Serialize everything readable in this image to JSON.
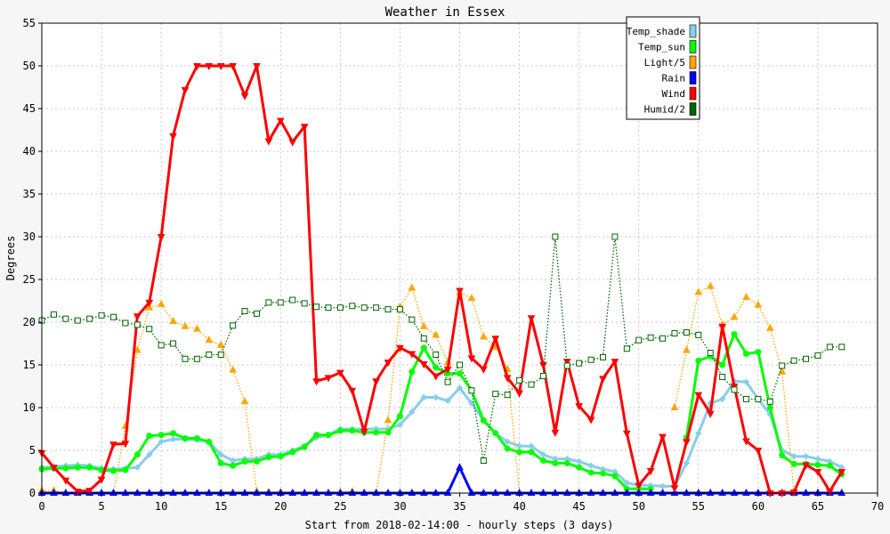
{
  "chart_data": {
    "type": "line",
    "title": "Weather in Essex",
    "xlabel": "Start from 2018-02-14:00 - hourly steps (3 days)",
    "ylabel": "Degrees",
    "xlim": [
      0,
      70
    ],
    "ylim": [
      0,
      55
    ],
    "x_ticks": [
      0,
      5,
      10,
      15,
      20,
      25,
      30,
      35,
      40,
      45,
      50,
      55,
      60,
      65,
      70
    ],
    "y_ticks": [
      0,
      5,
      10,
      15,
      20,
      25,
      30,
      35,
      40,
      45,
      50,
      55
    ],
    "grid": true,
    "legend_position": "top-right",
    "x": [
      0,
      1,
      2,
      3,
      4,
      5,
      6,
      7,
      8,
      9,
      10,
      11,
      12,
      13,
      14,
      15,
      16,
      17,
      18,
      19,
      20,
      21,
      22,
      23,
      24,
      25,
      26,
      27,
      28,
      29,
      30,
      31,
      32,
      33,
      34,
      35,
      36,
      37,
      38,
      39,
      40,
      41,
      42,
      43,
      44,
      45,
      46,
      47,
      48,
      49,
      50,
      51,
      52,
      53,
      54,
      55,
      56,
      57,
      58,
      59,
      60,
      61,
      62,
      63,
      64,
      65,
      66,
      67
    ],
    "series": [
      {
        "name": "Temp_shade",
        "color": "#87ceeb",
        "style": "solid",
        "marker": "diamond",
        "values": [
          3.0,
          3.1,
          3.2,
          3.3,
          3.2,
          2.9,
          2.8,
          2.9,
          3.0,
          4.5,
          6.0,
          6.3,
          6.3,
          6.2,
          6.0,
          4.5,
          3.8,
          4.0,
          4.0,
          4.5,
          4.5,
          5.0,
          5.5,
          6.5,
          6.8,
          7.5,
          7.5,
          7.5,
          7.5,
          7.5,
          8.0,
          9.5,
          11.2,
          11.2,
          10.8,
          12.3,
          10.5,
          8.5,
          7.0,
          6.0,
          5.5,
          5.5,
          4.5,
          4.0,
          4.0,
          3.7,
          3.2,
          2.8,
          2.5,
          1.2,
          0.9,
          0.9,
          0.8,
          0.8,
          3.5,
          7.0,
          10.5,
          11.0,
          13.1,
          13.0,
          11.0,
          9.2,
          5.0,
          4.3,
          4.3,
          4.0,
          3.7,
          3.0
        ]
      },
      {
        "name": "Temp_sun",
        "color": "#00ff00",
        "style": "solid",
        "marker": "circle",
        "values": [
          2.8,
          2.9,
          2.9,
          3.0,
          3.0,
          2.7,
          2.6,
          2.7,
          4.5,
          6.7,
          6.8,
          7.0,
          6.4,
          6.4,
          6.0,
          3.5,
          3.2,
          3.7,
          3.7,
          4.2,
          4.3,
          4.8,
          5.4,
          6.8,
          6.8,
          7.3,
          7.3,
          7.1,
          7.1,
          7.1,
          9.0,
          14.2,
          17.0,
          14.7,
          14.0,
          14.0,
          12.0,
          8.5,
          7.0,
          5.2,
          4.8,
          4.8,
          3.8,
          3.5,
          3.5,
          3.0,
          2.4,
          2.3,
          2.0,
          0.5,
          0.5,
          0.5,
          null,
          null,
          6.5,
          15.5,
          16.0,
          15.0,
          18.6,
          16.3,
          16.5,
          10.0,
          4.4,
          3.4,
          3.4,
          3.3,
          3.2,
          2.2
        ]
      },
      {
        "name": "Light/5",
        "color": "#ffa500",
        "style": "dotted",
        "marker": "triangle-up",
        "values": [
          0.3,
          0.3,
          0.0,
          0.0,
          0.0,
          0.0,
          0.0,
          7.8,
          16.7,
          21.7,
          22.1,
          20.1,
          19.5,
          19.2,
          17.9,
          17.3,
          14.4,
          10.7,
          0.2,
          0.1,
          0.1,
          0.0,
          0.0,
          0.0,
          0.0,
          0.1,
          0.2,
          0.0,
          0.0,
          8.5,
          21.8,
          24.0,
          19.5,
          18.5,
          15.3,
          23.5,
          22.8,
          18.3,
          17.1,
          14.5,
          0.0,
          null,
          null,
          null,
          null,
          null,
          null,
          null,
          null,
          null,
          null,
          null,
          null,
          10.0,
          16.7,
          23.5,
          24.2,
          19.7,
          20.6,
          22.9,
          22.0,
          19.3,
          14.2,
          0.1,
          0.0,
          0.0,
          0.0,
          0.0
        ]
      },
      {
        "name": "Rain",
        "color": "#0000ff",
        "style": "solid",
        "marker": "triangle-up",
        "values": [
          0,
          0,
          0,
          0,
          0,
          0,
          0,
          0,
          0,
          0,
          0,
          0,
          0,
          0,
          0,
          0,
          0,
          0,
          0,
          0,
          0,
          0,
          0,
          0,
          0,
          0,
          0,
          0,
          0,
          0,
          0,
          0,
          0,
          0,
          0,
          3.0,
          0,
          0,
          0,
          0,
          0,
          0,
          0,
          0,
          0,
          0,
          0,
          0,
          0,
          0,
          0,
          0,
          0,
          0,
          0,
          0,
          0,
          0,
          0,
          0,
          0,
          0,
          0,
          0,
          0,
          0,
          0,
          0
        ]
      },
      {
        "name": "Wind",
        "color": "#ff0000",
        "style": "solid",
        "marker": "triangle-down",
        "values": [
          4.7,
          3.0,
          1.5,
          0.2,
          0.3,
          1.6,
          5.7,
          5.8,
          20.7,
          22.3,
          30.0,
          41.8,
          47.2,
          50.0,
          50.0,
          50.0,
          50.0,
          46.5,
          50.0,
          41.2,
          43.6,
          41.1,
          42.9,
          13.1,
          13.5,
          14.1,
          12.0,
          7.2,
          13.1,
          15.3,
          17.0,
          16.3,
          15.1,
          13.7,
          14.5,
          23.7,
          15.8,
          14.5,
          18.1,
          13.5,
          11.7,
          20.5,
          15.0,
          7.1,
          15.4,
          10.2,
          8.6,
          13.4,
          15.4,
          7.0,
          0.9,
          2.6,
          6.6,
          0.6,
          6.0,
          11.5,
          9.3,
          19.5,
          12.5,
          6.1,
          5.0,
          0.0,
          0.0,
          0.1,
          3.3,
          2.5,
          0.2,
          2.5
        ]
      },
      {
        "name": "Humid/2",
        "color": "#006400",
        "style": "dotted",
        "marker": "square",
        "values": [
          20.2,
          20.9,
          20.4,
          20.2,
          20.4,
          20.8,
          20.6,
          19.9,
          19.7,
          19.2,
          17.3,
          17.5,
          15.7,
          15.7,
          16.2,
          16.2,
          19.6,
          21.3,
          21.0,
          22.3,
          22.3,
          22.6,
          22.2,
          21.8,
          21.7,
          21.7,
          21.9,
          21.7,
          21.7,
          21.5,
          21.5,
          20.3,
          18.1,
          16.2,
          13.0,
          15.0,
          12.0,
          3.8,
          11.6,
          11.5,
          13.2,
          12.7,
          13.7,
          30.0,
          14.9,
          15.2,
          15.6,
          15.9,
          30.0,
          16.9,
          17.9,
          18.2,
          18.1,
          18.7,
          18.8,
          18.5,
          16.4,
          13.6,
          12.1,
          11.0,
          11.0,
          10.7,
          14.9,
          15.5,
          15.7,
          16.1,
          17.1,
          17.1
        ]
      }
    ]
  }
}
